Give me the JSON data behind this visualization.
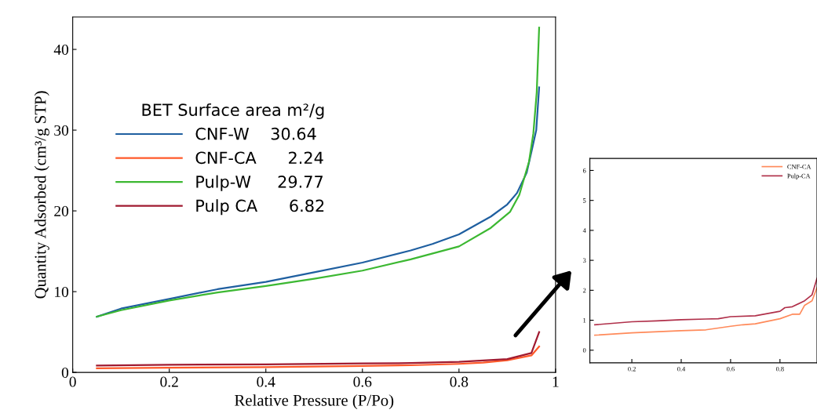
{
  "chart_data": [
    {
      "type": "line",
      "xlabel": "Relative Pressure (P/Po)",
      "ylabel": "Quantity Adsorbed (cm³/g STP)",
      "legend_title": "BET Surface area m²/g",
      "legend": "left",
      "xlim": [
        0,
        1
      ],
      "ylim": [
        0,
        44
      ],
      "xticks": [
        0,
        0.2,
        0.4,
        0.6,
        0.8,
        1
      ],
      "yticks": [
        0,
        10,
        20,
        30,
        40
      ],
      "grid": false,
      "series": [
        {
          "name": "CNF-W    30.64",
          "color": "#1f5fa0",
          "x": [
            0.05,
            0.1,
            0.2,
            0.3,
            0.4,
            0.5,
            0.6,
            0.7,
            0.745,
            0.8,
            0.866,
            0.9,
            0.92,
            0.94,
            0.95,
            0.96,
            0.966
          ],
          "values": [
            6.9,
            7.9,
            9.1,
            10.3,
            11.2,
            12.4,
            13.6,
            15.1,
            15.9,
            17.1,
            19.3,
            20.8,
            22.2,
            24.7,
            27.3,
            30.0,
            35.3
          ]
        },
        {
          "name": "CNF-CA      2.24",
          "color": "#ff5a2a",
          "x": [
            0.05,
            0.2,
            0.4,
            0.6,
            0.7,
            0.8,
            0.85,
            0.9,
            0.95,
            0.966
          ],
          "values": [
            0.5,
            0.58,
            0.65,
            0.8,
            0.88,
            1.05,
            1.2,
            1.5,
            2.1,
            3.2
          ]
        },
        {
          "name": "Pulp-W     29.77",
          "color": "#3cb832",
          "x": [
            0.05,
            0.1,
            0.2,
            0.3,
            0.4,
            0.5,
            0.6,
            0.7,
            0.8,
            0.866,
            0.906,
            0.925,
            0.945,
            0.954,
            0.961,
            0.966
          ],
          "values": [
            6.9,
            7.7,
            8.9,
            9.9,
            10.7,
            11.6,
            12.6,
            14.0,
            15.6,
            17.9,
            19.9,
            22.0,
            26.1,
            29.6,
            34.7,
            42.7
          ]
        },
        {
          "name": "Pulp CA      6.82",
          "color": "#a01a30",
          "x": [
            0.05,
            0.2,
            0.4,
            0.6,
            0.7,
            0.8,
            0.9,
            0.95,
            0.966
          ],
          "values": [
            0.85,
            0.95,
            1.0,
            1.12,
            1.15,
            1.3,
            1.65,
            2.4,
            5.0
          ]
        }
      ]
    },
    {
      "type": "line",
      "legend": "top right",
      "xlim": [
        0.03,
        0.95
      ],
      "ylim": [
        -0.42,
        6.4
      ],
      "xticks": [
        0.2,
        0.4,
        0.6,
        0.8
      ],
      "yticks": [
        0,
        1,
        2,
        3,
        4,
        5,
        6
      ],
      "grid": false,
      "series": [
        {
          "name": "CNF-CA",
          "color": "#ff8a5a",
          "x": [
            0.05,
            0.2,
            0.4,
            0.5,
            0.6,
            0.65,
            0.7,
            0.8,
            0.85,
            0.88,
            0.9,
            0.93,
            0.95
          ],
          "values": [
            0.5,
            0.58,
            0.65,
            0.68,
            0.8,
            0.85,
            0.88,
            1.05,
            1.2,
            1.2,
            1.5,
            1.65,
            2.1
          ]
        },
        {
          "name": "Pulp-CA",
          "color": "#b0304a",
          "x": [
            0.05,
            0.2,
            0.3,
            0.4,
            0.5,
            0.55,
            0.6,
            0.7,
            0.8,
            0.82,
            0.85,
            0.9,
            0.93,
            0.95
          ],
          "values": [
            0.85,
            0.95,
            0.98,
            1.02,
            1.04,
            1.05,
            1.12,
            1.15,
            1.3,
            1.42,
            1.45,
            1.65,
            1.85,
            2.4
          ]
        }
      ]
    }
  ]
}
